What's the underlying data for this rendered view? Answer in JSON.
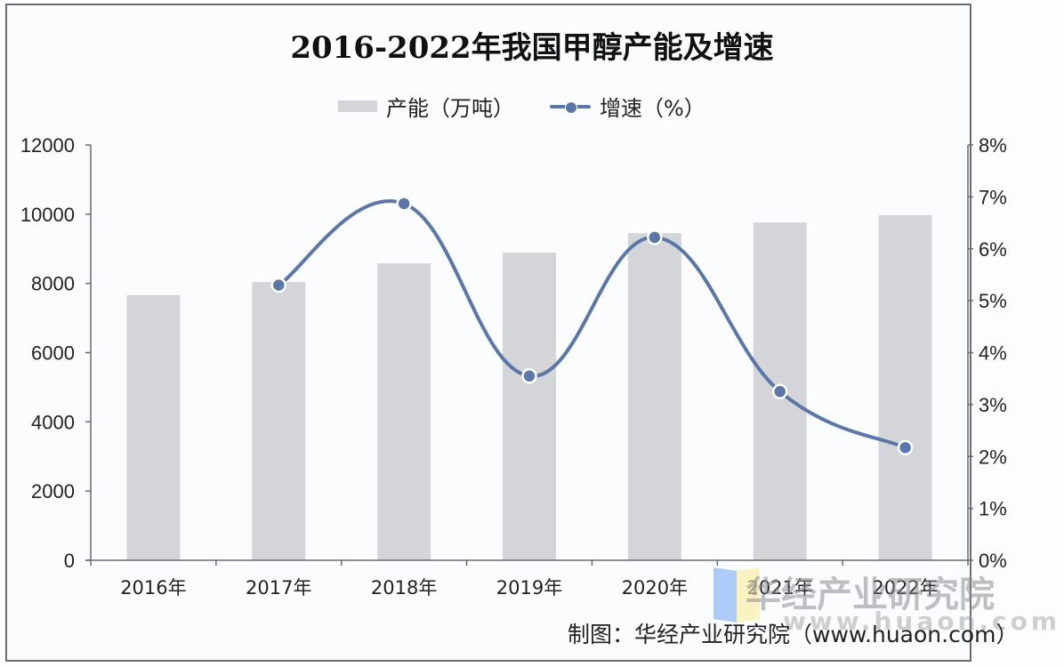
{
  "chart_data": {
    "type": "bar+line",
    "title": "2016-2022年我国甲醇产能及增速",
    "categories": [
      "2016年",
      "2017年",
      "2018年",
      "2019年",
      "2020年",
      "2021年",
      "2022年"
    ],
    "series": [
      {
        "name": "产能（万吨）",
        "type": "bar",
        "axis": "left",
        "color": "#d4d5d9",
        "values": [
          7660,
          8040,
          8580,
          8890,
          9450,
          9760,
          9970
        ]
      },
      {
        "name": "增速（%）",
        "type": "line",
        "axis": "right",
        "color": "#5a77a8",
        "smooth": true,
        "values": [
          null,
          5.3,
          6.87,
          3.55,
          6.22,
          3.25,
          2.17
        ]
      }
    ],
    "left_axis": {
      "label": "",
      "ylim": [
        0,
        12000
      ],
      "ticks": [
        "0",
        "2000",
        "4000",
        "6000",
        "8000",
        "10000",
        "12000"
      ]
    },
    "right_axis": {
      "label": "",
      "ylim": [
        0,
        8
      ],
      "ticks": [
        "0%",
        "1%",
        "2%",
        "3%",
        "4%",
        "5%",
        "6%",
        "7%",
        "8%"
      ]
    },
    "xlabel": "",
    "grid": false,
    "legend_position": "top"
  },
  "legend": {
    "bar_label": "产能（万吨）",
    "line_label": "增速（%）"
  },
  "source": "制图：华经产业研究院（www.huaon.com）",
  "watermark": {
    "text": "华经产业研究院",
    "url": "www.huaon.com"
  }
}
